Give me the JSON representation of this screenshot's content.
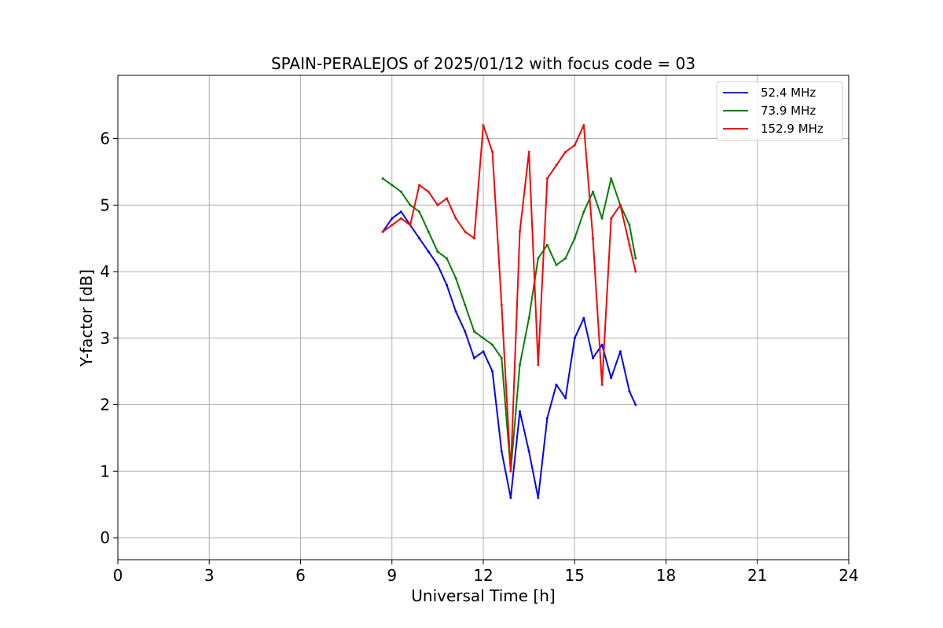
{
  "chart_data": {
    "type": "line",
    "title": "SPAIN-PERALEJOS of 2025/01/12 with focus code = 03",
    "xlabel": "Universal Time [h]",
    "ylabel": "Y-factor [dB]",
    "xlim": [
      0,
      24
    ],
    "ylim": [
      -0.33,
      6.95
    ],
    "xticks": [
      0,
      3,
      6,
      9,
      12,
      15,
      18,
      21,
      24
    ],
    "yticks": [
      0,
      1,
      2,
      3,
      4,
      5,
      6
    ],
    "grid": true,
    "legend_position": "top-right",
    "series": [
      {
        "name": "52.4 MHz",
        "color": "#0000ff",
        "x": [
          8.7,
          9.0,
          9.3,
          9.6,
          9.9,
          10.2,
          10.5,
          10.8,
          11.1,
          11.4,
          11.7,
          12.0,
          12.3,
          12.6,
          12.9,
          13.2,
          13.5,
          13.8,
          14.1,
          14.4,
          14.7,
          15.0,
          15.3,
          15.6,
          15.9,
          16.2,
          16.5,
          16.8,
          17.0
        ],
        "y": [
          4.6,
          4.8,
          4.9,
          4.7,
          4.5,
          4.3,
          4.1,
          3.8,
          3.4,
          3.1,
          2.7,
          2.8,
          2.5,
          1.3,
          0.6,
          1.9,
          1.3,
          0.6,
          1.8,
          2.3,
          2.1,
          3.0,
          3.3,
          2.7,
          2.9,
          2.4,
          2.8,
          2.2,
          2.0
        ]
      },
      {
        "name": "73.9 MHz",
        "color": "#008000",
        "x": [
          8.7,
          9.0,
          9.3,
          9.6,
          9.9,
          10.2,
          10.5,
          10.8,
          11.1,
          11.4,
          11.7,
          12.0,
          12.3,
          12.6,
          12.9,
          13.2,
          13.5,
          13.8,
          14.1,
          14.4,
          14.7,
          15.0,
          15.3,
          15.6,
          15.9,
          16.2,
          16.5,
          16.8,
          17.0
        ],
        "y": [
          5.4,
          5.3,
          5.2,
          5.0,
          4.9,
          4.6,
          4.3,
          4.2,
          3.9,
          3.5,
          3.1,
          3.0,
          2.9,
          2.7,
          1.0,
          2.6,
          3.3,
          4.2,
          4.4,
          4.1,
          4.2,
          4.5,
          4.9,
          5.2,
          4.8,
          5.4,
          5.0,
          4.7,
          4.2
        ]
      },
      {
        "name": "152.9 MHz",
        "color": "#ff0000",
        "x": [
          8.7,
          9.0,
          9.3,
          9.6,
          9.9,
          10.2,
          10.5,
          10.8,
          11.1,
          11.4,
          11.7,
          12.0,
          12.3,
          12.6,
          12.9,
          13.2,
          13.5,
          13.8,
          14.1,
          14.4,
          14.7,
          15.0,
          15.3,
          15.6,
          15.9,
          16.2,
          16.5,
          16.8,
          17.0
        ],
        "y": [
          4.6,
          4.7,
          4.8,
          4.7,
          5.3,
          5.2,
          5.0,
          5.1,
          4.8,
          4.6,
          4.5,
          6.2,
          5.8,
          3.5,
          1.0,
          4.6,
          5.8,
          2.6,
          5.4,
          5.6,
          5.8,
          5.9,
          6.2,
          4.5,
          2.3,
          4.8,
          5.0,
          4.4,
          4.0
        ]
      }
    ]
  }
}
